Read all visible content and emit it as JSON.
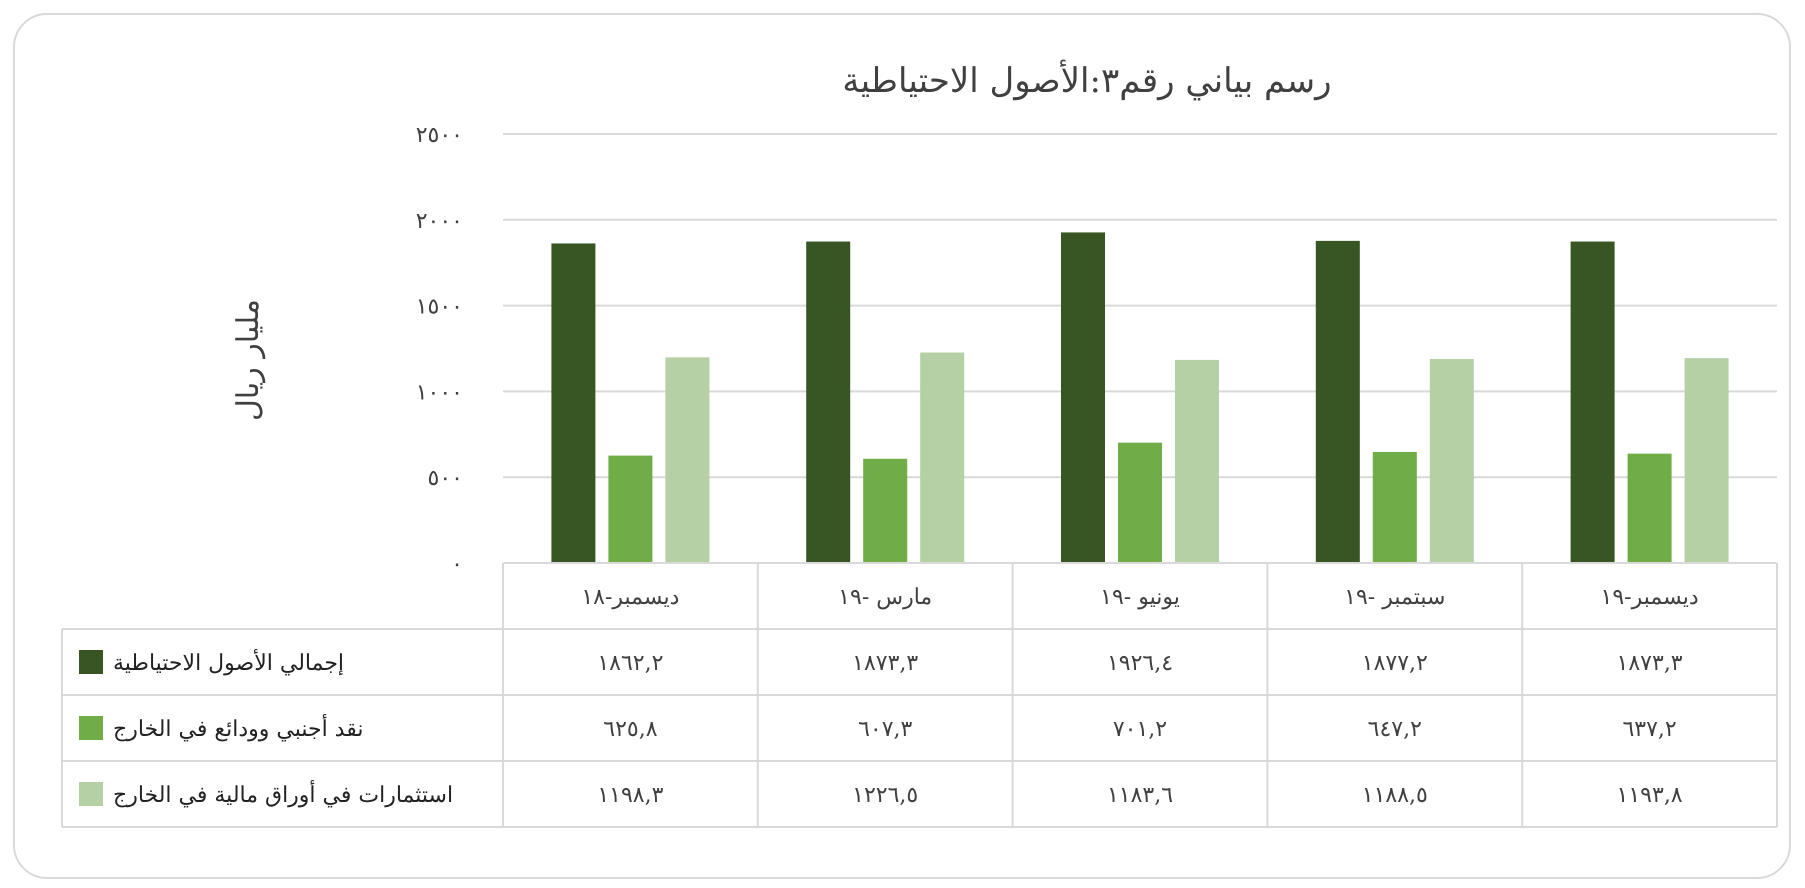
{
  "chart_data": {
    "type": "bar",
    "title": "رسم بياني رقم٣:الأصول الاحتياطية",
    "ylabel": "مليار ريال",
    "xlabel": "",
    "ylim": [
      0,
      2500
    ],
    "yticks": [
      "٠",
      "٥٠٠",
      "١٠٠٠",
      "١٥٠٠",
      "٢٠٠٠",
      "٢٥٠٠"
    ],
    "grid": true,
    "legend": "data-table-left",
    "categories": [
      "ديسمبر-١٨",
      "مارس -١٩",
      "يونيو -١٩",
      "سبتمبر -١٩",
      "ديسمبر-١٩"
    ],
    "series": [
      {
        "name": "إجمالي الأصول الاحتياطية",
        "color": "#375623",
        "values": [
          1862.2,
          1873.3,
          1926.4,
          1877.2,
          1873.3
        ],
        "labels": [
          "١٨٦٢,٢",
          "١٨٧٣,٣",
          "١٩٢٦,٤",
          "١٨٧٧,٢",
          "١٨٧٣,٣"
        ]
      },
      {
        "name": "نقد أجنبي وودائع في الخارج",
        "color": "#70ad47",
        "values": [
          625.8,
          607.3,
          701.2,
          647.2,
          637.2
        ],
        "labels": [
          "٦٢٥,٨",
          "٦٠٧,٣",
          "٧٠١,٢",
          "٦٤٧,٢",
          "٦٣٧,٢"
        ]
      },
      {
        "name": "استثمارات  في أوراق مالية في الخارج",
        "color": "#b4d0a4",
        "values": [
          1198.3,
          1226.5,
          1183.6,
          1188.5,
          1193.8
        ],
        "labels": [
          "١١٩٨,٣",
          "١٢٢٦,٥",
          "١١٨٣,٦",
          "١١٨٨,٥",
          "١١٩٣,٨"
        ]
      }
    ]
  }
}
